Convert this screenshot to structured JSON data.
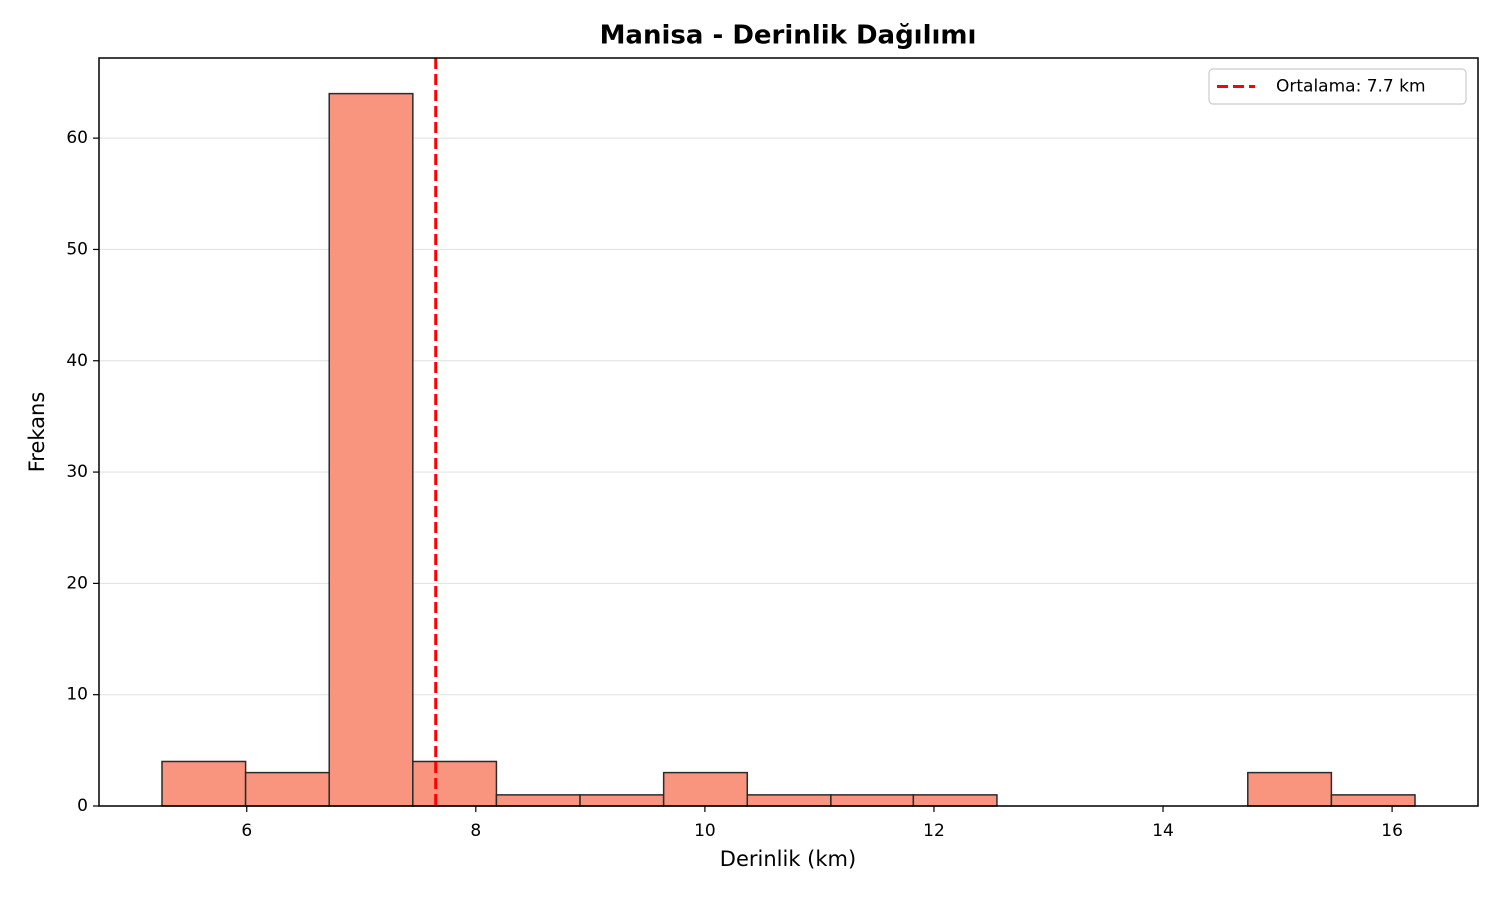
{
  "chart_data": {
    "type": "histogram",
    "title": "Manisa - Derinlik Dağılımı",
    "xlabel": "Derinlik (km)",
    "ylabel": "Frekans",
    "bins": [
      5.26,
      5.99,
      6.72,
      7.45,
      8.18,
      8.91,
      9.64,
      10.37,
      11.1,
      11.82,
      12.55,
      13.28,
      14.01,
      14.74,
      15.47,
      16.2
    ],
    "values": [
      4,
      3,
      64,
      4,
      1,
      1,
      3,
      1,
      1,
      1,
      0,
      0,
      0,
      3,
      1
    ],
    "color": "#f9957f",
    "edgecolor": "#2b2b2b",
    "xlim": [
      4.71,
      16.75
    ],
    "xticks": [
      6,
      8,
      10,
      12,
      14,
      16
    ],
    "ylim": [
      0,
      67.2
    ],
    "yticks": [
      0,
      10,
      20,
      30,
      40,
      50,
      60
    ],
    "grid": "y",
    "mean_line": {
      "value": 7.65,
      "label": "Ortalama: 7.7 km",
      "color": "#ff0000"
    },
    "legend": "upper right"
  }
}
